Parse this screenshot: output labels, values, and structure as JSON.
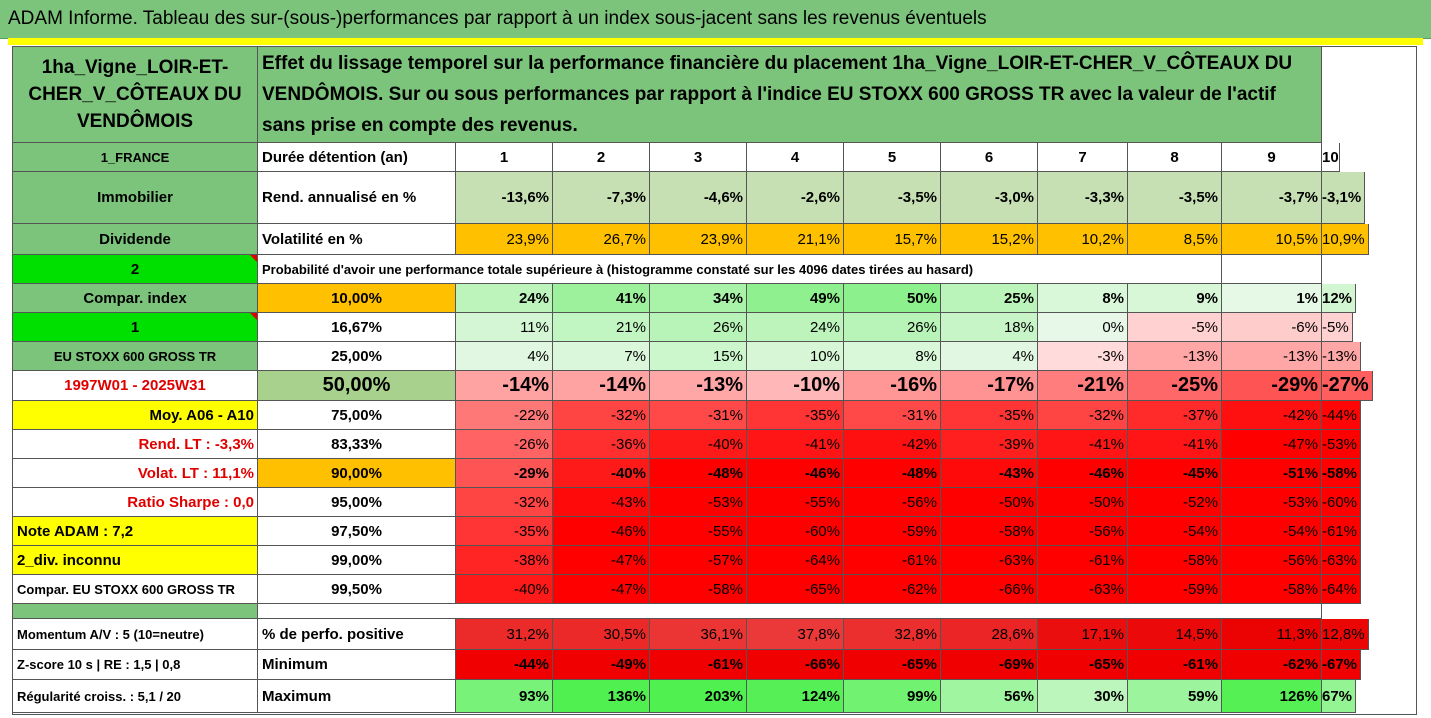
{
  "title": "ADAM Informe. Tableau des sur-(sous-)performances par rapport à un index sous-jacent sans les revenus éventuels",
  "asset_name": "1ha_Vigne_LOIR-ET-CHER_V_CÔTEAUX DU VENDÔMOIS",
  "description": "Effet du lissage temporel sur la performance financière du placement 1ha_Vigne_LOIR-ET-CHER_V_CÔTEAUX DU VENDÔMOIS. Sur ou sous performances par rapport à l'indice EU STOXX 600 GROSS TR avec la valeur de l'actif sans prise en compte des revenus.",
  "left": {
    "country": "1_FRANCE",
    "category": "Immobilier",
    "income_type": "Dividende",
    "flag_2": "2",
    "compar_index": "Compar. index",
    "flag_1": "1",
    "index_name": "EU STOXX 600 GROSS TR",
    "period": "1997W01 - 2025W31",
    "moy": "Moy. A06 - A10",
    "rend_lt": "Rend. LT :   -3,3%",
    "volat_lt": "Volat. LT :   11,1%",
    "sharpe": "Ratio Sharpe :   0,0",
    "note": "Note ADAM : 7,2",
    "div": "2_div. inconnu",
    "compar_full": "Compar. EU STOXX 600 GROSS TR",
    "momentum": "Momentum A/V : 5 (10=neutre)",
    "zscore": "Z-score 10 s  |  RE : 1,5  |  0,8",
    "regularite": "Régularité croiss. : 5,1 / 20"
  },
  "labels": {
    "duree": "Durée détention (an)",
    "rend": "Rend. annualisé en %",
    "vol": "Volatilité en %",
    "proba": "Probabilité d'avoir une performance totale supérieure à (histogramme constaté sur les 4096 dates tirées au hasard)",
    "pos": "% de perfo. positive",
    "min": "Minimum",
    "max": "Maximum"
  },
  "years": [
    "1",
    "2",
    "3",
    "4",
    "5",
    "6",
    "7",
    "8",
    "9",
    "10"
  ],
  "rend_annualise": [
    "-13,6%",
    "-7,3%",
    "-4,6%",
    "-2,6%",
    "-3,5%",
    "-3,0%",
    "-3,3%",
    "-3,5%",
    "-3,7%",
    "-3,1%"
  ],
  "volatilite": [
    "23,9%",
    "26,7%",
    "23,9%",
    "21,1%",
    "15,7%",
    "15,2%",
    "10,2%",
    "8,5%",
    "10,5%",
    "10,9%"
  ],
  "quantile_rows": [
    {
      "pct": "10,00%",
      "values": [
        "24%",
        "41%",
        "34%",
        "49%",
        "50%",
        "25%",
        "8%",
        "9%",
        "1%",
        "12%"
      ]
    },
    {
      "pct": "16,67%",
      "values": [
        "11%",
        "21%",
        "26%",
        "24%",
        "26%",
        "18%",
        "0%",
        "-5%",
        "-6%",
        "-5%"
      ]
    },
    {
      "pct": "25,00%",
      "values": [
        "4%",
        "7%",
        "15%",
        "10%",
        "8%",
        "4%",
        "-3%",
        "-13%",
        "-13%",
        "-13%"
      ]
    },
    {
      "pct": "50,00%",
      "values": [
        "-14%",
        "-14%",
        "-13%",
        "-10%",
        "-16%",
        "-17%",
        "-21%",
        "-25%",
        "-29%",
        "-27%"
      ]
    },
    {
      "pct": "75,00%",
      "values": [
        "-22%",
        "-32%",
        "-31%",
        "-35%",
        "-31%",
        "-35%",
        "-32%",
        "-37%",
        "-42%",
        "-44%"
      ]
    },
    {
      "pct": "83,33%",
      "values": [
        "-26%",
        "-36%",
        "-40%",
        "-41%",
        "-42%",
        "-39%",
        "-41%",
        "-41%",
        "-47%",
        "-53%"
      ]
    },
    {
      "pct": "90,00%",
      "values": [
        "-29%",
        "-40%",
        "-48%",
        "-46%",
        "-48%",
        "-43%",
        "-46%",
        "-45%",
        "-51%",
        "-58%"
      ]
    },
    {
      "pct": "95,00%",
      "values": [
        "-32%",
        "-43%",
        "-53%",
        "-55%",
        "-56%",
        "-50%",
        "-50%",
        "-52%",
        "-53%",
        "-60%"
      ]
    },
    {
      "pct": "97,50%",
      "values": [
        "-35%",
        "-46%",
        "-55%",
        "-60%",
        "-59%",
        "-58%",
        "-56%",
        "-54%",
        "-54%",
        "-61%"
      ]
    },
    {
      "pct": "99,00%",
      "values": [
        "-38%",
        "-47%",
        "-57%",
        "-64%",
        "-61%",
        "-63%",
        "-61%",
        "-58%",
        "-56%",
        "-63%"
      ]
    },
    {
      "pct": "99,50%",
      "values": [
        "-40%",
        "-47%",
        "-58%",
        "-65%",
        "-62%",
        "-66%",
        "-63%",
        "-59%",
        "-58%",
        "-64%"
      ]
    }
  ],
  "perf_positive": [
    "31,2%",
    "30,5%",
    "36,1%",
    "37,8%",
    "32,8%",
    "28,6%",
    "17,1%",
    "14,5%",
    "11,3%",
    "12,8%"
  ],
  "minimum": [
    "-44%",
    "-49%",
    "-61%",
    "-66%",
    "-65%",
    "-69%",
    "-65%",
    "-61%",
    "-62%",
    "-67%"
  ],
  "maximum": [
    "93%",
    "136%",
    "203%",
    "124%",
    "99%",
    "56%",
    "30%",
    "59%",
    "126%",
    "67%"
  ],
  "colors": {
    "header_green": "#7cc47c",
    "bright_green": "#00e000",
    "yellow": "#ffff00",
    "orange": "#ffc000",
    "rend_green": "#c6e0b4",
    "red_text": "#e00000"
  }
}
